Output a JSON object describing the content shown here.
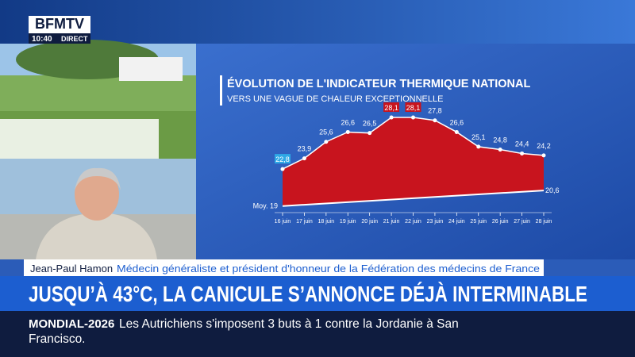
{
  "header": {
    "logo": "BFMTV",
    "time": "10:40",
    "live": "DIRECT"
  },
  "chart_data": {
    "type": "area",
    "title": "ÉVOLUTION DE L'INDICATEUR THERMIQUE NATIONAL",
    "subtitle": "VERS UNE VAGUE DE CHALEUR EXCEPTIONNELLE",
    "categories": [
      "16 juin",
      "17 juin",
      "18 juin",
      "19 juin",
      "20 juin",
      "21 juin",
      "22 juin",
      "23 juin",
      "24 juin",
      "25 juin",
      "26 juin",
      "27 juin",
      "28 juin"
    ],
    "values": [
      22.8,
      23.9,
      25.6,
      26.6,
      26.5,
      28.1,
      28.1,
      27.8,
      26.6,
      25.1,
      24.8,
      24.4,
      24.2
    ],
    "value_labels": [
      "22,8",
      "23,9",
      "25,6",
      "26,6",
      "26,5",
      "28,1",
      "28,1",
      "27,8",
      "26,6",
      "25,1",
      "24,8",
      "24,4",
      "24,2"
    ],
    "label_box_colors": [
      "#2ea8e6",
      null,
      null,
      null,
      null,
      "#c8141e",
      "#c8141e",
      null,
      null,
      null,
      null,
      null,
      null
    ],
    "color": "#c8141e",
    "baseline": {
      "values": [
        19,
        20.6
      ],
      "labels": [
        "Moy. 19",
        "20,6"
      ],
      "color": "#ffffff"
    },
    "ylim": [
      18,
      29
    ]
  },
  "caption": {
    "name": "Jean-Paul Hamon",
    "role": "Médecin généraliste et président d'honneur de la Fédération des médecins de France"
  },
  "headline": "JUSQU’À 43°C, LA CANICULE S’ANNONCE DÉJÀ INTERMINABLE",
  "ticker": {
    "tag": "MONDIAL-2026",
    "text": "Les Autrichiens s'imposent 3 buts à 1 contre la Jordanie à San Francisco."
  }
}
